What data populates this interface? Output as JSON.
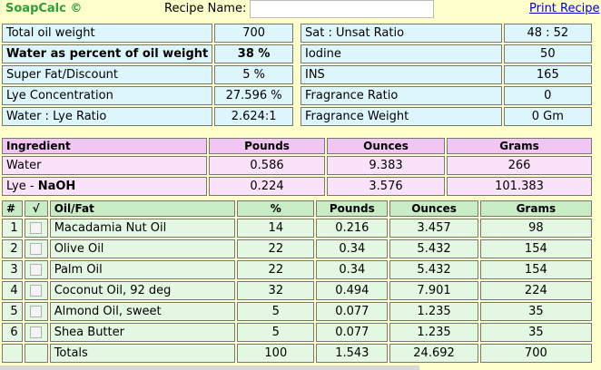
{
  "header": {
    "brand": "SoapCalc ©",
    "recipe_label": "Recipe Name:",
    "recipe_value": "",
    "print_link": "Print Recipe"
  },
  "settings_left": [
    {
      "label": "Total oil weight",
      "value": "700",
      "bold": false
    },
    {
      "label": "Water as percent of oil weight",
      "value": "38 %",
      "bold": true
    },
    {
      "label": "Super Fat/Discount",
      "value": "5 %",
      "bold": false
    },
    {
      "label": "Lye Concentration",
      "value": "27.596 %",
      "bold": false
    },
    {
      "label": "Water : Lye Ratio",
      "value": "2.624:1",
      "bold": false
    }
  ],
  "settings_right": [
    {
      "label": "Sat : Unsat Ratio",
      "value": "48 : 52"
    },
    {
      "label": "Iodine",
      "value": "50"
    },
    {
      "label": "INS",
      "value": "165"
    },
    {
      "label": "Fragrance Ratio",
      "value": "0"
    },
    {
      "label": "Fragrance Weight",
      "value": "0 Gm"
    }
  ],
  "ingredients": {
    "headers": [
      "Ingredient",
      "Pounds",
      "Ounces",
      "Grams"
    ],
    "water": {
      "name": "Water",
      "pounds": "0.586",
      "ounces": "9.383",
      "grams": "266"
    },
    "lye": {
      "name_prefix": "Lye - ",
      "name_bold": "NaOH",
      "pounds": "0.224",
      "ounces": "3.576",
      "grams": "101.383"
    }
  },
  "oils": {
    "headers": [
      "#",
      "√",
      "Oil/Fat",
      "%",
      "Pounds",
      "Ounces",
      "Grams"
    ],
    "rows": [
      {
        "num": "1",
        "name": "Macadamia Nut Oil",
        "pct": "14",
        "pounds": "0.216",
        "ounces": "3.457",
        "grams": "98"
      },
      {
        "num": "2",
        "name": "Olive Oil",
        "pct": "22",
        "pounds": "0.34",
        "ounces": "5.432",
        "grams": "154"
      },
      {
        "num": "3",
        "name": "Palm Oil",
        "pct": "22",
        "pounds": "0.34",
        "ounces": "5.432",
        "grams": "154"
      },
      {
        "num": "4",
        "name": "Coconut Oil, 92 deg",
        "pct": "32",
        "pounds": "0.494",
        "ounces": "7.901",
        "grams": "224"
      },
      {
        "num": "5",
        "name": "Almond Oil, sweet",
        "pct": "5",
        "pounds": "0.077",
        "ounces": "1.235",
        "grams": "35"
      },
      {
        "num": "6",
        "name": "Shea Butter",
        "pct": "5",
        "pounds": "0.077",
        "ounces": "1.235",
        "grams": "35"
      }
    ],
    "totals": {
      "label": "Totals",
      "pct": "100",
      "pounds": "1.543",
      "ounces": "24.692",
      "grams": "700"
    }
  }
}
